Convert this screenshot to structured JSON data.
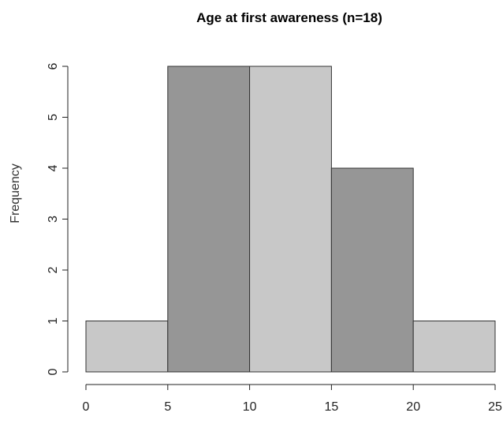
{
  "chart_data": {
    "type": "bar",
    "title": "Age at first awareness (n=18)",
    "xlabel": "",
    "ylabel": "Frequency",
    "bins": [
      {
        "start": 0,
        "end": 5,
        "count": 1,
        "color": "#c8c8c8"
      },
      {
        "start": 5,
        "end": 10,
        "count": 6,
        "color": "#969696"
      },
      {
        "start": 10,
        "end": 15,
        "count": 6,
        "color": "#c8c8c8"
      },
      {
        "start": 15,
        "end": 20,
        "count": 4,
        "color": "#969696"
      },
      {
        "start": 20,
        "end": 25,
        "count": 1,
        "color": "#c8c8c8"
      }
    ],
    "xlim": [
      0,
      25
    ],
    "ylim": [
      0,
      6
    ],
    "x_ticks": [
      0,
      5,
      10,
      15,
      20,
      25
    ],
    "y_ticks": [
      0,
      1,
      2,
      3,
      4,
      5,
      6
    ],
    "grid": false,
    "legend": "none"
  }
}
